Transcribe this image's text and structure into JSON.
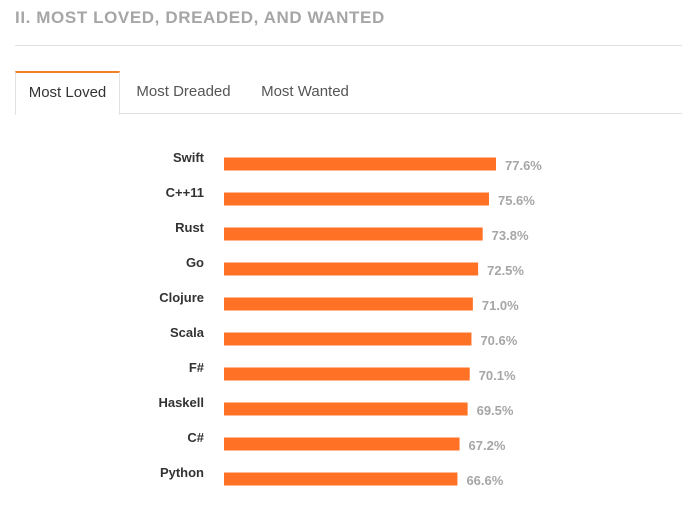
{
  "section": {
    "title": "II. MOST LOVED, DREADED, AND WANTED"
  },
  "tabs": [
    {
      "label": "Most Loved",
      "active": true
    },
    {
      "label": "Most Dreaded",
      "active": false
    },
    {
      "label": "Most Wanted",
      "active": false
    }
  ],
  "colors": {
    "bar": "#ff7226",
    "accent": "#f48024",
    "value_text": "#a6a6a6",
    "label_text": "#333333"
  },
  "chart_data": {
    "type": "bar",
    "orientation": "horizontal",
    "categories": [
      "Swift",
      "C++11",
      "Rust",
      "Go",
      "Clojure",
      "Scala",
      "F#",
      "Haskell",
      "C#",
      "Python"
    ],
    "values": [
      77.6,
      75.6,
      73.8,
      72.5,
      71.0,
      70.6,
      70.1,
      69.5,
      67.2,
      66.6
    ],
    "value_labels": [
      "77.6%",
      "75.6%",
      "73.8%",
      "72.5%",
      "71.0%",
      "70.6%",
      "70.1%",
      "69.5%",
      "67.2%",
      "66.6%"
    ],
    "title": "",
    "xlabel": "",
    "ylabel": "",
    "grid": false,
    "legend": "none"
  }
}
